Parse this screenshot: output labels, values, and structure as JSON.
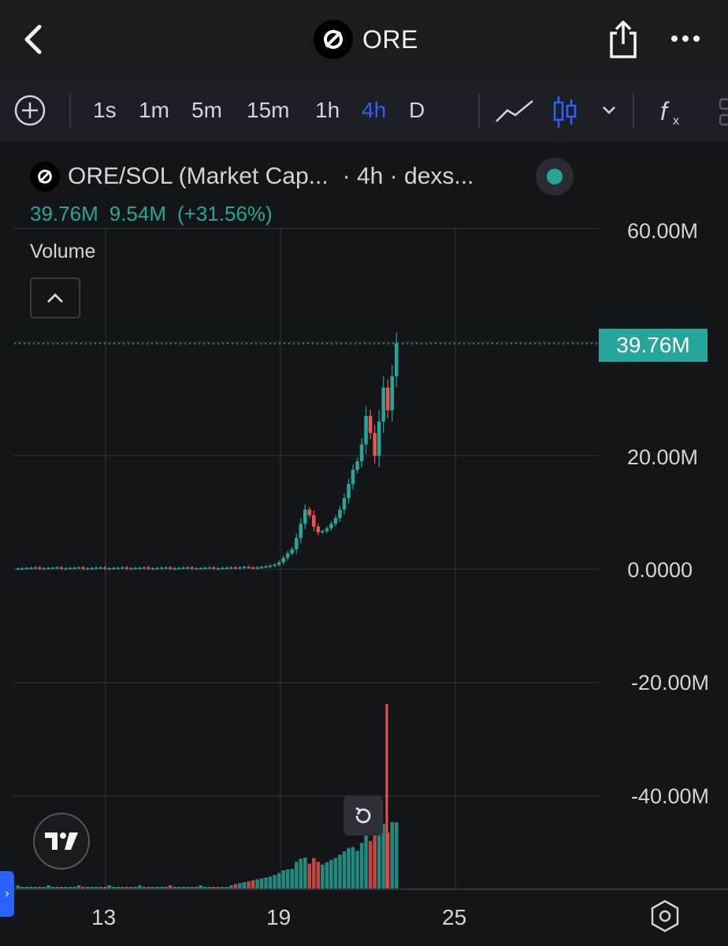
{
  "header": {
    "title": "ORE",
    "back_icon": "chevron-left-icon",
    "share_icon": "share-icon",
    "more_icon": "more-horizontal-icon"
  },
  "toolbar": {
    "timeframes": [
      "1s",
      "1m",
      "5m",
      "15m",
      "1h",
      "4h",
      "D"
    ],
    "active_timeframe": "4h",
    "active_color": "#2962ff"
  },
  "legend": {
    "symbol": "ORE/SOL (Market Cap...",
    "interval_source": "· 4h · dexs...",
    "last_value": "39.76M",
    "change_value": "9.54M",
    "change_pct": "(+31.56%)",
    "up_color": "#26a69a",
    "down_color": "#ef5350"
  },
  "volume_panel": {
    "label": "Volume"
  },
  "price_tag": "39.76M",
  "chart_data": {
    "type": "candlestick",
    "y_axis_labels": [
      "60.00M",
      "20.00M",
      "0.0000",
      "-20.00M",
      "-40.00M"
    ],
    "ylim": [
      -55,
      65
    ],
    "y_units": "M",
    "x_axis_labels": [
      "13",
      "19",
      "25"
    ],
    "last_price": 39.76,
    "series": [
      {
        "name": "Market Cap",
        "values_approx_close_millions": [
          0.2,
          0.3,
          0.4,
          0.3,
          0.2,
          0.3,
          0.4,
          0.5,
          0.6,
          0.8,
          1.2,
          2.0,
          2.8,
          3.5,
          5.5,
          8.0,
          10.5,
          9.5,
          7.5,
          6.5,
          6.7,
          7.2,
          8.0,
          9.0,
          10.5,
          12.5,
          15.0,
          17.5,
          19.0,
          22.0,
          27.0,
          24.0,
          20.0,
          26.0,
          32.0,
          28.0,
          34.0,
          39.76
        ]
      }
    ]
  }
}
